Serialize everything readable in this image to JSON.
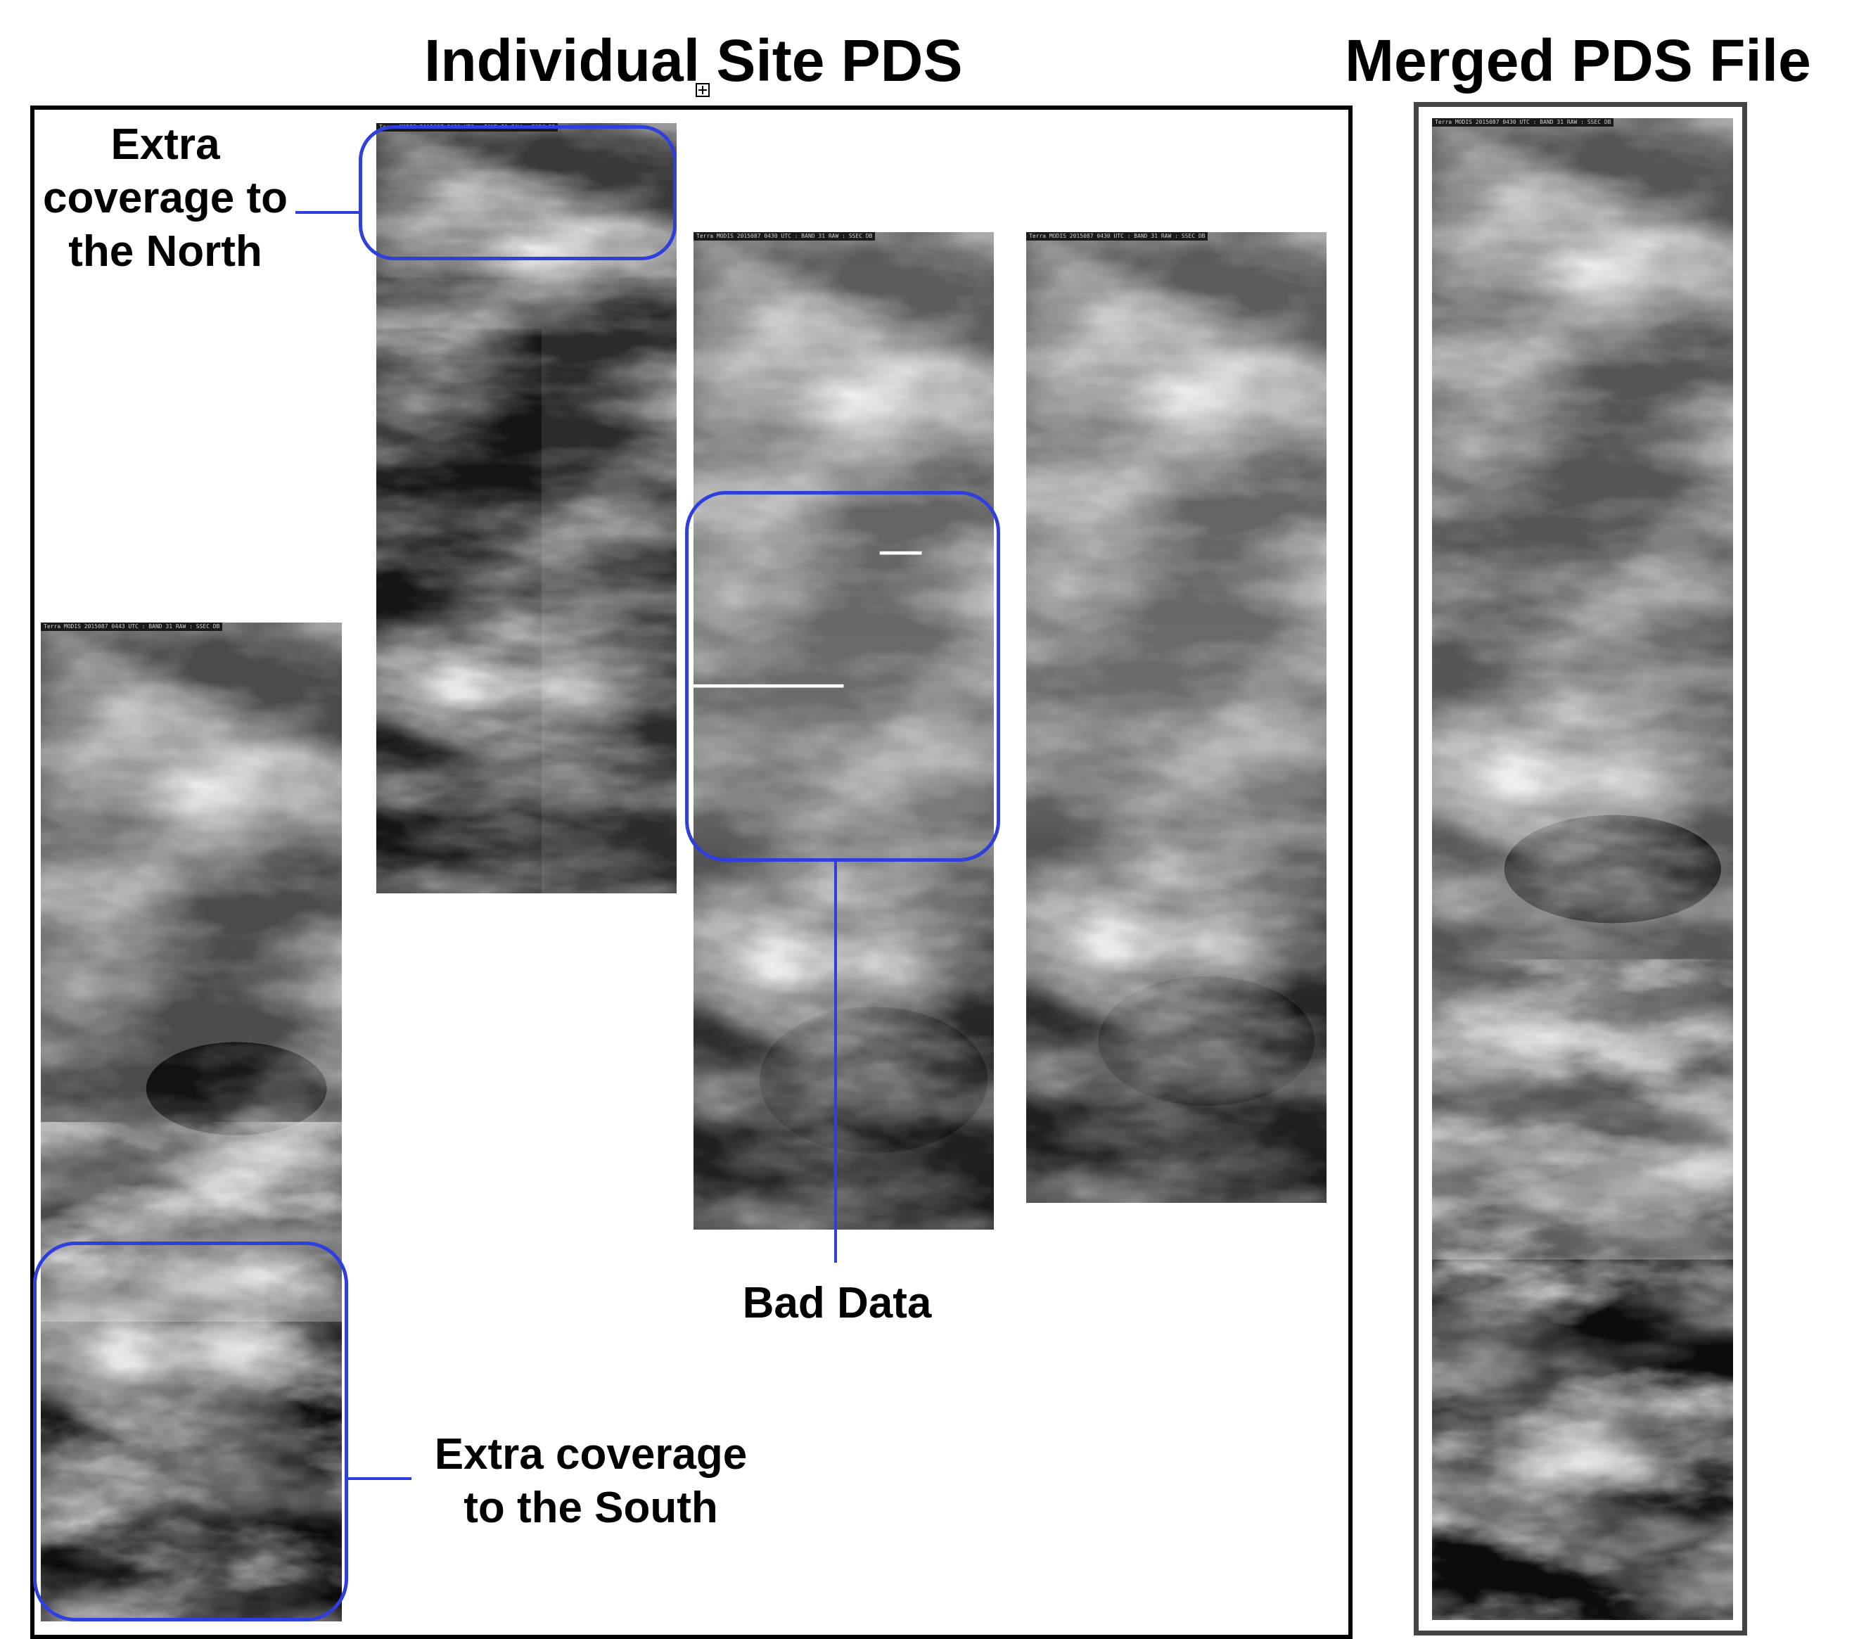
{
  "titles": {
    "individual": "Individual Site PDS",
    "merged": "Merged PDS File"
  },
  "annotations": {
    "north_line1": "Extra",
    "north_line2": "coverage to",
    "north_line3": "the North",
    "bad_data": "Bad Data",
    "south_line1": "Extra coverage",
    "south_line2": "to the South"
  },
  "strip_headers": {
    "strip1": "Terra MODIS 2015087 0443 UTC : BAND 31 RAW : SSEC DB",
    "strip2": "Terra MODIS 2015087 0430 UTC : BAND 31 RAW : SSEC DB",
    "strip3": "Terra MODIS 2015087 0430 UTC : BAND 31 RAW : SSEC DB",
    "strip4": "Terra MODIS 2015087 0430 UTC : BAND 31 RAW : SSEC DB",
    "merged": "Terra MODIS 2015087 0430 UTC : BAND 31 RAW : SSEC DB"
  },
  "colors": {
    "highlight": "#2f3fdd",
    "frame": "#000000"
  }
}
